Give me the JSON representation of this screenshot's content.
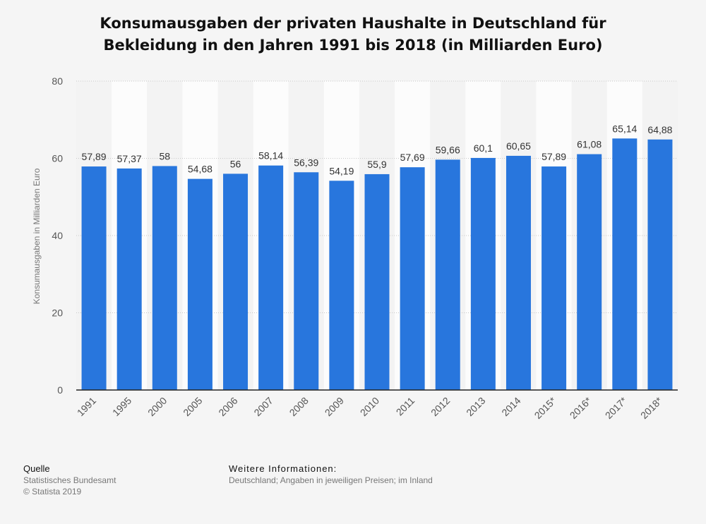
{
  "header": {
    "title_line1": "Konsumausgaben der privaten Haushalte in Deutschland für",
    "title_line2": "Bekleidung in den Jahren 1991 bis 2018 (in Milliarden Euro)"
  },
  "chart_data": {
    "type": "bar",
    "title": "Konsumausgaben der privaten Haushalte in Deutschland für Bekleidung in den Jahren 1991 bis 2018 (in Milliarden Euro)",
    "xlabel": "",
    "ylabel": "Konsumausgaben in Milliarden Euro",
    "ylim": [
      0,
      80
    ],
    "yticks": [
      0,
      20,
      40,
      60,
      80
    ],
    "categories": [
      "1991",
      "1995",
      "2000",
      "2005",
      "2006",
      "2007",
      "2008",
      "2009",
      "2010",
      "2011",
      "2012",
      "2013",
      "2014",
      "2015*",
      "2016*",
      "2017*",
      "2018*"
    ],
    "values": [
      57.89,
      57.37,
      58,
      54.68,
      56,
      58.14,
      56.39,
      54.19,
      55.9,
      57.69,
      59.66,
      60.1,
      60.65,
      57.89,
      61.08,
      65.14,
      64.88
    ],
    "value_labels": [
      "57,89",
      "57,37",
      "58",
      "54,68",
      "56",
      "58,14",
      "56,39",
      "54,19",
      "55,9",
      "57,69",
      "59,66",
      "60,1",
      "60,65",
      "57,89",
      "61,08",
      "65,14",
      "64,88"
    ],
    "bar_color": "#2876dd",
    "grid": true
  },
  "footer": {
    "source_heading": "Quelle",
    "source_line1": "Statistisches Bundesamt",
    "source_line2": "© Statista 2019",
    "info_heading": "Weitere Informationen:",
    "info_text": "Deutschland; Angaben in jeweiligen Preisen; im Inland"
  }
}
